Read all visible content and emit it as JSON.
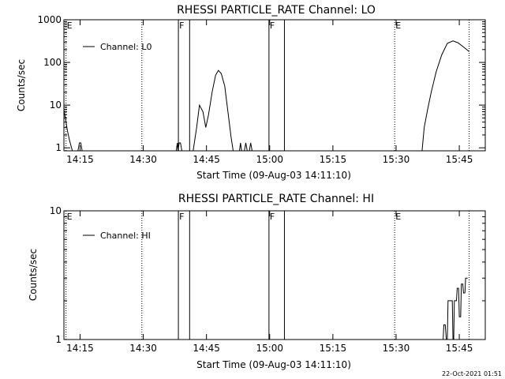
{
  "footer": {
    "timestamp": "22-Oct-2021 01:51"
  },
  "chart_data": [
    {
      "type": "line",
      "title": "RHESSI PARTICLE_RATE Channel: LO",
      "xlabel": "Start Time (09-Aug-03 14:11:10)",
      "ylabel": "Counts/sec",
      "yscale": "log",
      "xlim": [
        "14:11:10",
        "15:51:10"
      ],
      "ylim": [
        0.85,
        1000
      ],
      "xticks": [
        "14:15",
        "14:30",
        "14:45",
        "15:00",
        "15:15",
        "15:30",
        "15:45"
      ],
      "yticks": [
        {
          "value": 1,
          "label": "1"
        },
        {
          "value": 10,
          "label": "10"
        },
        {
          "value": 100,
          "label": "100"
        },
        {
          "value": 1000,
          "label": "1000"
        }
      ],
      "legend": {
        "position": "top-left",
        "label": "Channel: L0"
      },
      "markers": [
        {
          "time": "14:11:40",
          "label": "E",
          "style": "dotted"
        },
        {
          "time": "14:29:40",
          "label": "",
          "style": "dotted"
        },
        {
          "time": "14:38:20",
          "label": "F",
          "style": "solid"
        },
        {
          "time": "14:41:00",
          "label": "",
          "style": "solid"
        },
        {
          "time": "14:59:50",
          "label": "F",
          "style": "solid"
        },
        {
          "time": "15:03:30",
          "label": "",
          "style": "solid"
        },
        {
          "time": "15:29:40",
          "label": "E",
          "style": "dotted"
        },
        {
          "time": "15:47:20",
          "label": "",
          "style": "dotted"
        }
      ],
      "series": [
        {
          "points": [
            [
              "14:11:10",
              8
            ],
            [
              "14:11:30",
              5
            ],
            [
              "14:12:00",
              2.5
            ],
            [
              "14:12:30",
              1.5
            ],
            [
              "14:13:10",
              0.85
            ],
            [
              "14:14:30",
              0.85
            ],
            [
              "14:14:50",
              1.3
            ],
            [
              "14:15:10",
              1.3
            ],
            [
              "14:15:30",
              0.85
            ],
            [
              "14:37:50",
              0.85
            ],
            [
              "14:38:05",
              1.3
            ],
            [
              "14:38:15",
              0.85
            ],
            [
              "14:38:30",
              1.3
            ],
            [
              "14:38:50",
              1.3
            ],
            [
              "14:39:10",
              0.85
            ],
            [
              "14:41:50",
              0.85
            ],
            [
              "14:42:40",
              3
            ],
            [
              "14:43:20",
              10
            ],
            [
              "14:44:10",
              7
            ],
            [
              "14:44:50",
              3
            ],
            [
              "14:45:30",
              6
            ],
            [
              "14:46:20",
              20
            ],
            [
              "14:47:10",
              50
            ],
            [
              "14:47:50",
              65
            ],
            [
              "14:48:30",
              55
            ],
            [
              "14:49:20",
              28
            ],
            [
              "14:50:10",
              6
            ],
            [
              "14:50:50",
              1.8
            ],
            [
              "14:51:20",
              0.85
            ],
            [
              "14:52:50",
              0.85
            ],
            [
              "14:53:05",
              1.3
            ],
            [
              "14:53:20",
              0.85
            ],
            [
              "14:54:00",
              0.85
            ],
            [
              "14:54:20",
              1.3
            ],
            [
              "14:54:40",
              0.85
            ],
            [
              "14:55:10",
              0.85
            ],
            [
              "14:55:30",
              1.3
            ],
            [
              "14:55:50",
              0.85
            ],
            [
              "15:36:10",
              0.85
            ],
            [
              "15:36:40",
              3
            ],
            [
              "15:37:30",
              8
            ],
            [
              "15:38:20",
              20
            ],
            [
              "15:39:30",
              60
            ],
            [
              "15:40:50",
              150
            ],
            [
              "15:42:10",
              280
            ],
            [
              "15:43:30",
              320
            ],
            [
              "15:44:40",
              290
            ],
            [
              "15:46:00",
              230
            ],
            [
              "15:47:20",
              180
            ]
          ]
        }
      ]
    },
    {
      "type": "line",
      "title": "RHESSI PARTICLE_RATE Channel: HI",
      "xlabel": "Start Time (09-Aug-03 14:11:10)",
      "ylabel": "Counts/sec",
      "yscale": "log",
      "xlim": [
        "14:11:10",
        "15:51:10"
      ],
      "ylim": [
        1,
        10
      ],
      "xticks": [
        "14:15",
        "14:30",
        "14:45",
        "15:00",
        "15:15",
        "15:30",
        "15:45"
      ],
      "yticks": [
        {
          "value": 1,
          "label": "1"
        },
        {
          "value": 10,
          "label": "10"
        }
      ],
      "legend": {
        "position": "top-left",
        "label": "Channel: HI"
      },
      "markers": [
        {
          "time": "14:11:40",
          "label": "E",
          "style": "dotted"
        },
        {
          "time": "14:29:40",
          "label": "",
          "style": "dotted"
        },
        {
          "time": "14:38:20",
          "label": "F",
          "style": "solid"
        },
        {
          "time": "14:41:00",
          "label": "",
          "style": "solid"
        },
        {
          "time": "14:59:50",
          "label": "F",
          "style": "solid"
        },
        {
          "time": "15:03:30",
          "label": "",
          "style": "solid"
        },
        {
          "time": "15:29:40",
          "label": "E",
          "style": "dotted"
        },
        {
          "time": "15:47:20",
          "label": "",
          "style": "dotted"
        }
      ],
      "series": [
        {
          "points": [
            [
              "15:41:10",
              1
            ],
            [
              "15:41:20",
              1.3
            ],
            [
              "15:41:40",
              1.3
            ],
            [
              "15:41:55",
              1
            ],
            [
              "15:42:10",
              1
            ],
            [
              "15:42:20",
              2
            ],
            [
              "15:43:20",
              2
            ],
            [
              "15:43:30",
              1
            ],
            [
              "15:43:40",
              1
            ],
            [
              "15:43:50",
              2
            ],
            [
              "15:44:20",
              2
            ],
            [
              "15:44:30",
              2.5
            ],
            [
              "15:44:50",
              2.5
            ],
            [
              "15:45:00",
              1.5
            ],
            [
              "15:45:20",
              1.5
            ],
            [
              "15:45:30",
              2.7
            ],
            [
              "15:45:50",
              2.7
            ],
            [
              "15:46:00",
              2.3
            ],
            [
              "15:46:20",
              2.3
            ],
            [
              "15:46:30",
              3
            ],
            [
              "15:47:00",
              3
            ]
          ]
        }
      ]
    }
  ]
}
